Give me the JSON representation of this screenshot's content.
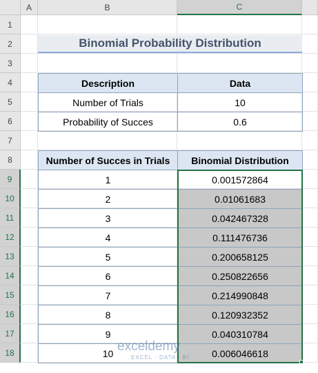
{
  "sheet": {
    "columns": [
      "A",
      "B",
      "C"
    ],
    "rows": [
      1,
      2,
      3,
      4,
      5,
      6,
      7,
      8,
      9,
      10,
      11,
      12,
      13,
      14,
      15,
      16,
      17,
      18
    ]
  },
  "title": "Binomial Probability Distribution",
  "input_table": {
    "header": [
      "Description",
      "Data"
    ],
    "rows": [
      [
        "Number of Trials",
        "10"
      ],
      [
        "Probability of Succes",
        "0.6"
      ]
    ]
  },
  "result_table": {
    "header": [
      "Number of Succes in Trials",
      "Binomial Distribution"
    ],
    "rows": [
      [
        "1",
        "0.001572864"
      ],
      [
        "2",
        "0.01061683"
      ],
      [
        "3",
        "0.042467328"
      ],
      [
        "4",
        "0.111476736"
      ],
      [
        "5",
        "0.200658125"
      ],
      [
        "6",
        "0.250822656"
      ],
      [
        "7",
        "0.214990848"
      ],
      [
        "8",
        "0.120932352"
      ],
      [
        "9",
        "0.040310784"
      ],
      [
        "10",
        "0.006046618"
      ]
    ]
  },
  "watermark": {
    "name": "exceldemy",
    "tagline": "EXCEL · DATA · BI"
  }
}
